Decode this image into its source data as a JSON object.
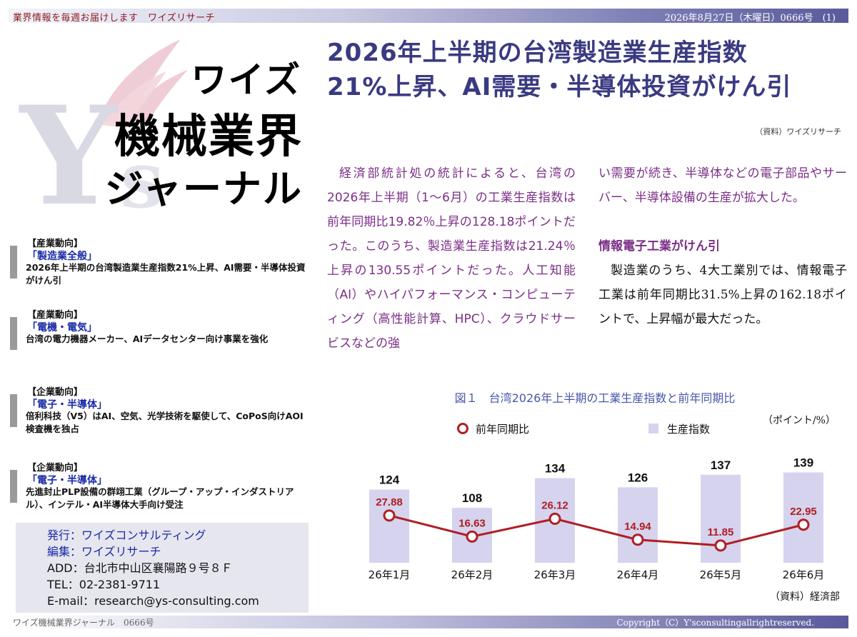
{
  "header": {
    "tagline": "業界情報を毎週お届けします　ワイズリサーチ",
    "issue": "2026年8月27日（木曜日）0666号　(1)"
  },
  "logo": {
    "line1": "ワイズ",
    "line2": "機械業界",
    "line3": "ジャーナル",
    "wing_color": "#e8b8c4",
    "letters_color": "#d8d8e4"
  },
  "headline": {
    "line1": "2026年上半期の台湾製造業生産指数",
    "line2": "21%上昇、AI需要・半導体投資がけん引",
    "source": "（資料）ワイズリサーチ"
  },
  "sidebar": {
    "items": [
      {
        "category": "【産業動向】",
        "sub": "「製造業全般」",
        "desc": "2026年上半期の台湾製造業生産指数21%上昇、AI需要・半導体投資がけん引"
      },
      {
        "category": "【産業動向】",
        "sub": "「電機・電気」",
        "desc": "台湾の電力機器メーカー、AIデータセンター向け事業を強化"
      },
      {
        "category": "【企業動向】",
        "sub": "「電子・半導体」",
        "desc": "倍利科技（V5）はAI、空気、光学技術を駆使して、CoPoS向けAOI検査機を独占"
      },
      {
        "category": "【企業動向】",
        "sub": "「電子・半導体」",
        "desc": "先進封止PLP設備の群翊工業（グループ・アップ・インダストリアル）、インテル・AI半導体大手向け受注"
      }
    ]
  },
  "publisher": {
    "issuer": "発行：ワイズコンサルティング",
    "editor": "編集：ワイズリサーチ",
    "address": "ADD：台北市中山区襄陽路９号８Ｆ",
    "tel": "TEL：02-2381-9711",
    "email": "E-mail：research@ys-consulting.com"
  },
  "article": {
    "para1": "経済部統計処の統計によると、台湾の2026年上半期（1〜6月）の工業生産指数は前年同期比19.82％上昇の128.18ポイントだった。このうち、製造業生産指数は21.24％上昇の130.55ポイントだった。人工知能（AI）やハイパフォーマンス・コンピューティング（高性能計算、HPC）、クラウドサービスなどの強",
    "para1_cont": "い需要が続き、半導体などの電子部品やサーバー、半導体設備の生産が拡大した。",
    "heading2": "情報電子工業がけん引",
    "para2": "製造業のうち、4大工業別では、情報電子工業は前年同期比31.5%上昇の162.18ポイントで、上昇幅が最大だった。"
  },
  "figure": {
    "title": "図１　台湾2026年上半期の工業生産指数と前年同期比",
    "unit": "（ポイント/%）",
    "source": "（資料）経済部"
  },
  "chart_data": {
    "type": "bar",
    "categories": [
      "26年1月",
      "26年2月",
      "26年3月",
      "26年4月",
      "26年5月",
      "26年6月"
    ],
    "series": [
      {
        "name": "生産指数",
        "type": "bar",
        "values": [
          124,
          108,
          134,
          126,
          137,
          139
        ],
        "color": "#d5d3ee",
        "labels": [
          "124",
          "108",
          "134",
          "126",
          "137",
          "139"
        ]
      },
      {
        "name": "前年同期比",
        "type": "line",
        "values": [
          27.88,
          16.63,
          26.12,
          14.94,
          11.85,
          22.95
        ],
        "color": "#b01e23",
        "labels": [
          "27.88",
          "16.63",
          "26.12",
          "14.94",
          "11.85",
          "22.95"
        ]
      }
    ],
    "title": "図１　台湾2026年上半期の工業生産指数と前年同期比",
    "bar_axis_range": [
      60,
      140
    ],
    "line_axis_range": [
      0,
      40
    ],
    "grid": false,
    "legend": "top"
  },
  "footer": {
    "left": "ワイズ機械業界ジャーナル　0666号",
    "right": "Copyright（C）Y'sconsultingallrightreserved."
  }
}
